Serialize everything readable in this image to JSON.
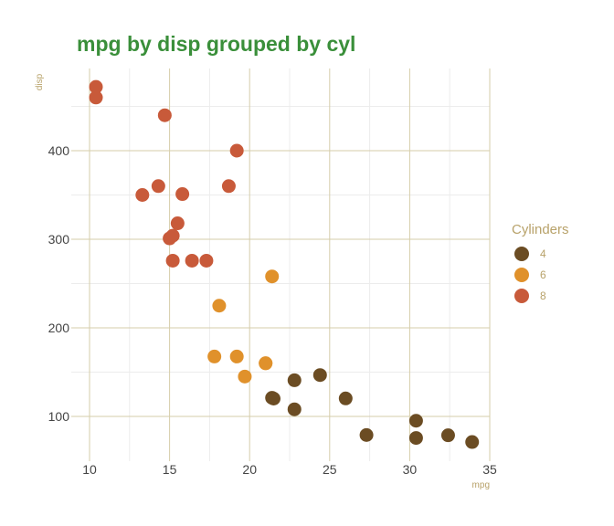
{
  "chart_data": {
    "type": "scatter",
    "title": "mpg by disp grouped by cyl",
    "xlabel": "mpg",
    "ylabel": "disp",
    "xlim": [
      10,
      35
    ],
    "ylim": [
      55,
      485
    ],
    "xticks": [
      "10",
      "15",
      "20",
      "25",
      "30",
      "35"
    ],
    "yticks": [
      "100",
      "200",
      "300",
      "400"
    ],
    "grid": true,
    "legend": {
      "title": "Cylinders",
      "position": "right"
    },
    "series": [
      {
        "name": "4",
        "color": "#6b4c23",
        "points": [
          [
            22.8,
            108
          ],
          [
            24.4,
            146.7
          ],
          [
            22.8,
            140.8
          ],
          [
            32.4,
            78.7
          ],
          [
            30.4,
            75.7
          ],
          [
            33.9,
            71.1
          ],
          [
            21.5,
            120.1
          ],
          [
            27.3,
            79
          ],
          [
            26.0,
            120.3
          ],
          [
            30.4,
            95.1
          ],
          [
            21.4,
            121
          ]
        ]
      },
      {
        "name": "6",
        "color": "#e0912b",
        "points": [
          [
            21.0,
            160
          ],
          [
            21.0,
            160
          ],
          [
            21.4,
            258
          ],
          [
            18.1,
            225
          ],
          [
            19.2,
            167.6
          ],
          [
            17.8,
            167.6
          ],
          [
            19.7,
            145
          ]
        ]
      },
      {
        "name": "8",
        "color": "#c85a3a",
        "points": [
          [
            18.7,
            360
          ],
          [
            14.3,
            360
          ],
          [
            16.4,
            275.8
          ],
          [
            17.3,
            275.8
          ],
          [
            15.2,
            275.8
          ],
          [
            10.4,
            472
          ],
          [
            10.4,
            460
          ],
          [
            14.7,
            440
          ],
          [
            15.5,
            318
          ],
          [
            15.2,
            304
          ],
          [
            13.3,
            350
          ],
          [
            19.2,
            400
          ],
          [
            15.8,
            351
          ],
          [
            15.0,
            301
          ]
        ]
      }
    ]
  }
}
